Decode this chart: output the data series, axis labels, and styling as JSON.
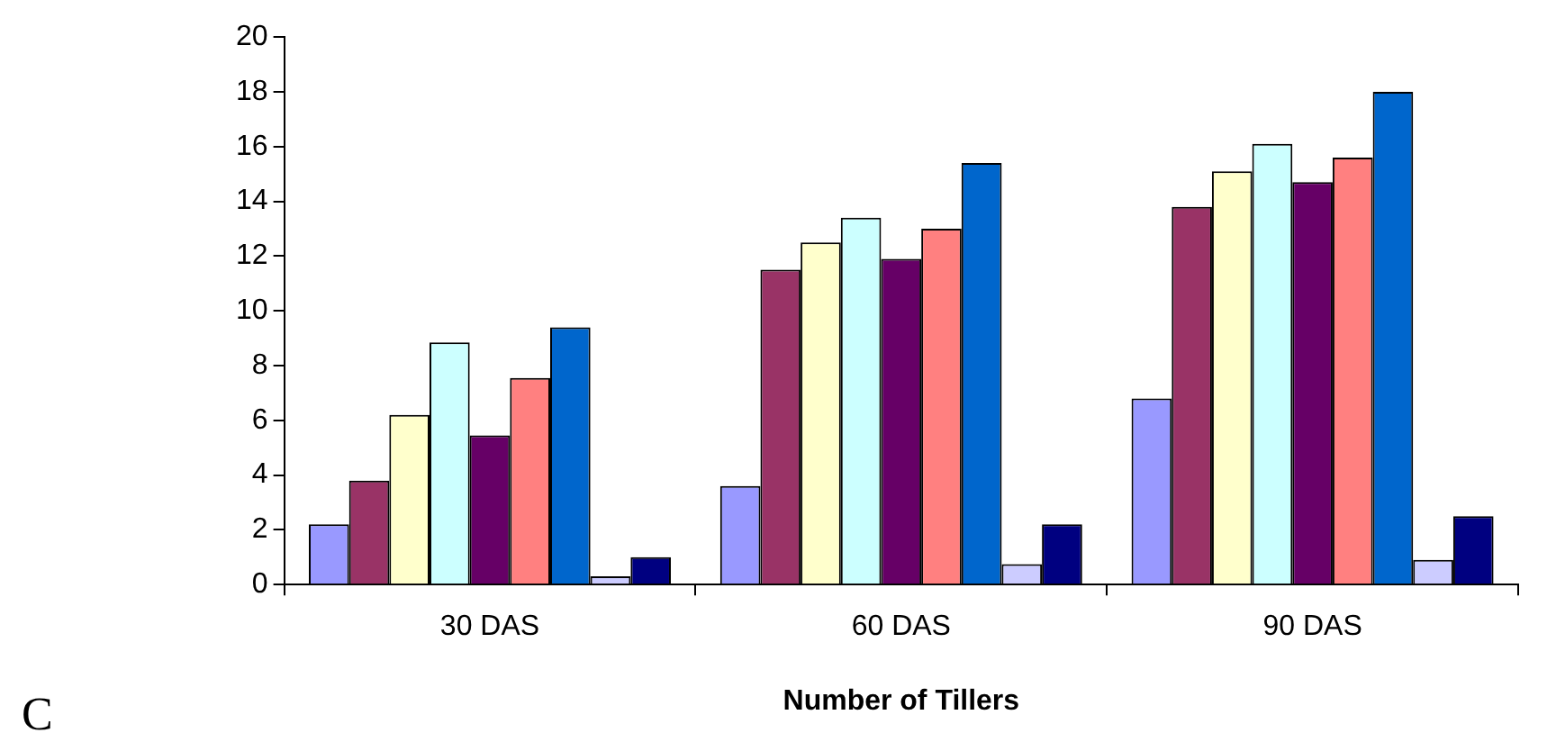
{
  "chart_data": {
    "type": "bar",
    "xlabel": "Number of Tillers",
    "categories": [
      "30 DAS",
      "60 DAS",
      "90 DAS"
    ],
    "series": [
      {
        "color": "#9999ff",
        "values": [
          2.2,
          3.6,
          6.8
        ]
      },
      {
        "color": "#993366",
        "values": [
          3.8,
          11.5,
          13.8
        ]
      },
      {
        "color": "#ffffcc",
        "values": [
          6.2,
          12.5,
          15.1
        ]
      },
      {
        "color": "#ccffff",
        "values": [
          8.85,
          13.4,
          16.1
        ]
      },
      {
        "color": "#660066",
        "values": [
          5.45,
          11.9,
          14.7
        ]
      },
      {
        "color": "#ff8080",
        "values": [
          7.55,
          13.0,
          15.6
        ]
      },
      {
        "color": "#0066cc",
        "values": [
          9.4,
          15.4,
          18.0
        ]
      },
      {
        "color": "#ccccff",
        "values": [
          0.3,
          0.75,
          0.9
        ]
      },
      {
        "color": "#000080",
        "values": [
          1.0,
          2.2,
          2.5
        ]
      }
    ],
    "ylim": [
      0,
      20
    ],
    "yticks": [
      0,
      2,
      4,
      6,
      8,
      10,
      12,
      14,
      16,
      18,
      20
    ],
    "grid": false,
    "legend": false,
    "annotations": [
      "C"
    ]
  }
}
